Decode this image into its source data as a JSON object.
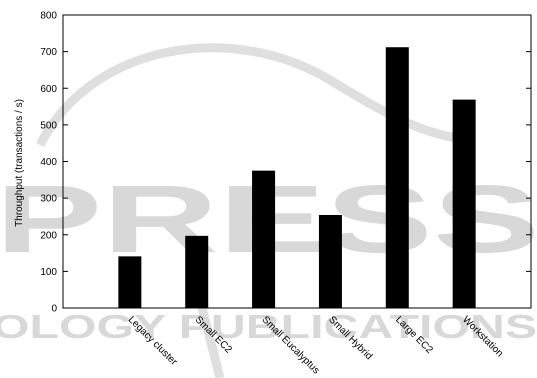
{
  "watermark": {
    "line1": "PRESS",
    "line2": "OLOGY PUBLICATIONS"
  },
  "chart_data": {
    "type": "bar",
    "title": "",
    "xlabel": "",
    "ylabel": "Throughput (transactions / s)",
    "categories": [
      "Legacy cluster",
      "Small EC2",
      "Small Eucalyptus",
      "Small Hybrid",
      "Large EC2",
      "Workstation"
    ],
    "values": [
      141,
      197,
      375,
      254,
      712,
      569
    ],
    "ylim": [
      0,
      800
    ],
    "yticks": [
      "0",
      "100",
      "200",
      "300",
      "400",
      "500",
      "600",
      "700",
      "800"
    ],
    "grid": false,
    "legend": "none",
    "bar_color": "#000000"
  }
}
